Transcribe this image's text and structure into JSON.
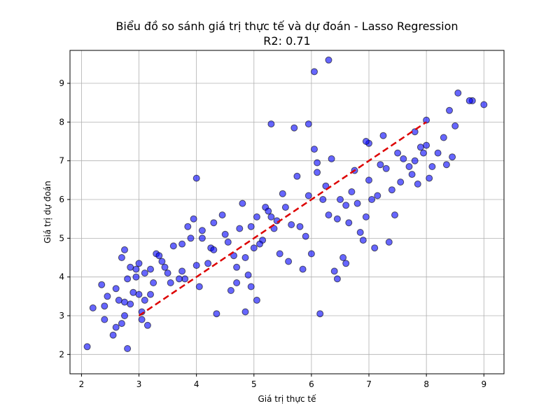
{
  "chart_data": {
    "type": "scatter",
    "title": "Biểu đồ so sánh giá trị thực tế và dự đoán - Lasso Regression",
    "subtitle": "R2: 0.71",
    "xlabel": "Giá trị thực tế",
    "ylabel": "Giá trị dự đoán",
    "xlim": [
      1.8,
      9.35
    ],
    "ylim": [
      1.5,
      9.85
    ],
    "xticks": [
      2,
      3,
      4,
      5,
      6,
      7,
      8,
      9
    ],
    "yticks": [
      2,
      3,
      4,
      5,
      6,
      7,
      8,
      9
    ],
    "grid": true,
    "colors": {
      "points": "#0000ff",
      "reference_line": "#dd0000"
    },
    "reference_line": {
      "x": [
        3,
        8
      ],
      "y": [
        3,
        8
      ]
    },
    "points": {
      "x": [
        2.1,
        2.2,
        2.35,
        2.4,
        2.4,
        2.45,
        2.55,
        2.6,
        2.6,
        2.65,
        2.7,
        2.7,
        2.75,
        2.75,
        2.8,
        2.85,
        2.9,
        2.95,
        3.0,
        3.05,
        3.1,
        3.15,
        3.2,
        3.3,
        3.5,
        3.75,
        4.0,
        4.1,
        4.3,
        4.55,
        4.8,
        5.0,
        5.2,
        5.35,
        5.6,
        5.85,
        6.0,
        6.2,
        6.45,
        6.7,
        7.0,
        7.2,
        7.5,
        7.8,
        8.0,
        8.3,
        8.5,
        8.8,
        9.0,
        6.05,
        6.3,
        5.3,
        5.7,
        5.95,
        6.05,
        4.85,
        5.05,
        4.95,
        6.45,
        6.55,
        6.9,
        6.95,
        7.1,
        7.35,
        7.45,
        6.15,
        6.4,
        6.6,
        6.8,
        7.85,
        8.05,
        8.55,
        8.75,
        4.0,
        4.35,
        4.6,
        4.7,
        3.55,
        3.8,
        2.8,
        2.85,
        3.0,
        3.1,
        3.25,
        3.35,
        3.45,
        3.6,
        3.75,
        3.85,
        3.9,
        4.1,
        4.2,
        4.25,
        4.45,
        4.65,
        4.75,
        4.85,
        4.9,
        5.05,
        5.15,
        5.25,
        5.4,
        5.5,
        5.65,
        5.75,
        5.9,
        6.1,
        6.25,
        6.35,
        6.5,
        6.65,
        6.75,
        6.85,
        7.0,
        7.15,
        7.3,
        7.6,
        7.7,
        7.8,
        7.9,
        8.1,
        8.2,
        8.35,
        8.45,
        8.4,
        8.0,
        7.95,
        7.75,
        7.55,
        7.4,
        7.25,
        7.05,
        6.95,
        6.6,
        6.3,
        6.1,
        5.95,
        5.8,
        5.55,
        5.45,
        5.3,
        5.1,
        4.95,
        4.7,
        4.5,
        4.3,
        4.05,
        3.95,
        3.7,
        3.4,
        3.2,
        3.05,
        2.95,
        2.75
      ],
      "y": [
        2.2,
        3.2,
        3.8,
        2.9,
        3.25,
        3.5,
        2.5,
        3.7,
        2.7,
        3.4,
        4.5,
        2.8,
        3.0,
        4.7,
        2.15,
        3.3,
        3.6,
        4.0,
        3.55,
        2.9,
        3.4,
        2.75,
        4.2,
        4.6,
        4.1,
        4.85,
        4.3,
        5.0,
        5.4,
        4.9,
        5.9,
        4.75,
        5.8,
        5.25,
        4.4,
        4.2,
        4.6,
        6.0,
        5.5,
        6.2,
        6.5,
        6.9,
        7.2,
        7.0,
        7.4,
        7.6,
        7.9,
        8.55,
        8.45,
        9.3,
        9.6,
        7.95,
        7.85,
        7.95,
        7.3,
        3.1,
        3.4,
        3.75,
        3.95,
        4.5,
        4.95,
        5.55,
        4.75,
        4.9,
        5.6,
        3.05,
        4.15,
        4.35,
        5.9,
        6.4,
        6.55,
        8.75,
        8.55,
        6.55,
        3.05,
        3.65,
        3.85,
        3.85,
        3.95,
        3.95,
        4.25,
        4.35,
        4.1,
        3.85,
        4.55,
        4.25,
        4.8,
        4.15,
        5.3,
        5.0,
        5.2,
        4.35,
        4.75,
        5.6,
        4.55,
        5.25,
        4.5,
        4.05,
        5.55,
        4.95,
        5.7,
        5.45,
        6.15,
        5.35,
        6.6,
        5.05,
        6.95,
        6.35,
        7.05,
        6.0,
        5.4,
        6.75,
        5.15,
        7.45,
        6.1,
        6.8,
        7.05,
        6.85,
        7.75,
        7.35,
        6.85,
        7.2,
        6.9,
        7.1,
        8.3,
        8.05,
        7.2,
        6.65,
        6.45,
        6.25,
        7.65,
        6.0,
        7.5,
        5.85,
        5.6,
        6.7,
        6.1,
        5.3,
        5.8,
        4.6,
        5.55,
        4.85,
        5.3,
        4.25,
        5.1,
        4.7,
        3.75,
        5.5,
        3.95,
        4.4,
        3.55,
        3.1,
        4.2,
        3.35
      ]
    }
  }
}
